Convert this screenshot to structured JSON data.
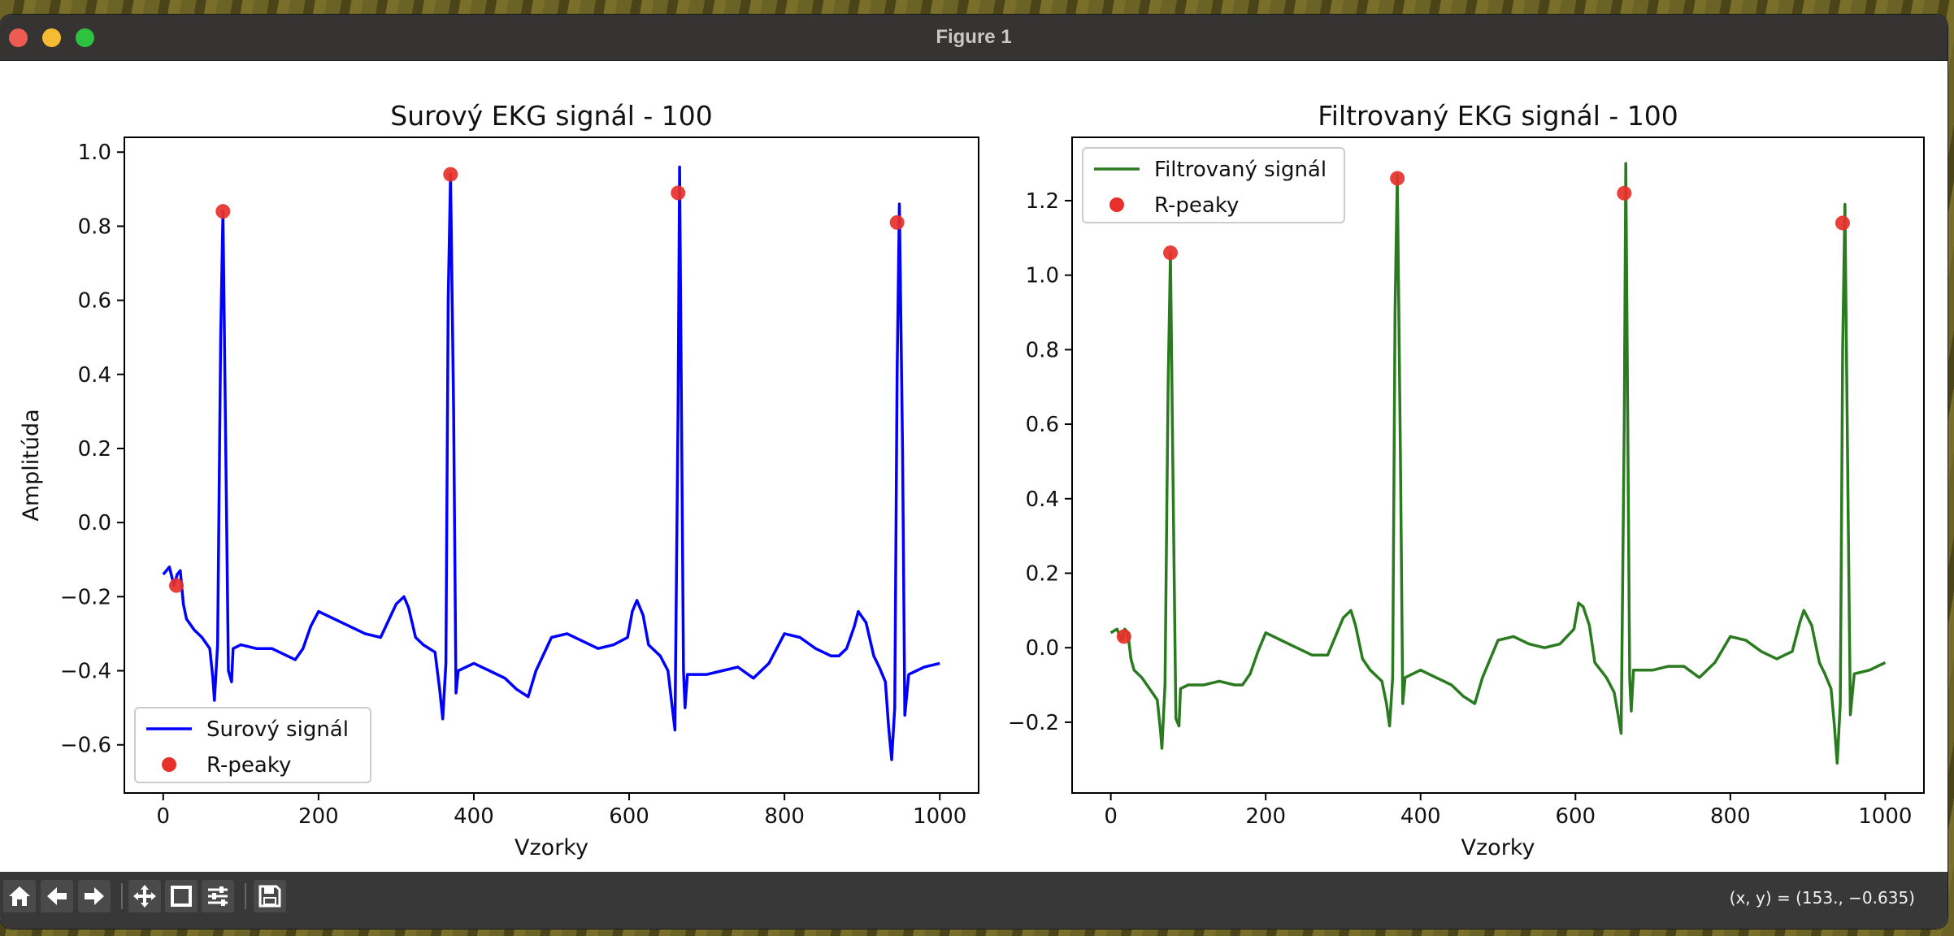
{
  "window": {
    "title": "Figure 1",
    "traffic_lights": {
      "close": "#ee5b52",
      "minimize": "#f4bb33",
      "maximize": "#2dc240"
    }
  },
  "toolbar": {
    "icons": [
      "home-icon",
      "back-arrow-icon",
      "forward-arrow-icon",
      "pan-icon",
      "zoom-icon",
      "configure-subplots-icon",
      "save-icon"
    ],
    "coordinates": "(x, y) = (153., −0.635)"
  },
  "chart_data": [
    {
      "type": "line",
      "title": "Surový EKG signál - 100",
      "xlabel": "Vzorky",
      "ylabel": "Amplitúda",
      "xlim": [
        -50,
        1050
      ],
      "ylim": [
        -0.73,
        1.04
      ],
      "xticks": [
        0,
        200,
        400,
        600,
        800,
        1000
      ],
      "yticks": [
        -0.6,
        -0.4,
        -0.2,
        0.0,
        0.2,
        0.4,
        0.6,
        0.8,
        1.0
      ],
      "ytick_labels": [
        "−0.6",
        "−0.4",
        "−0.2",
        "0.0",
        "0.2",
        "0.4",
        "0.6",
        "0.8",
        "1.0"
      ],
      "legend": {
        "placement": "lower left",
        "entries": [
          "Surový signál",
          "R-peaky"
        ]
      },
      "series": [
        {
          "name": "Surový signál",
          "color": "#0000ff",
          "x": [
            0,
            8,
            14,
            18,
            22,
            26,
            30,
            40,
            50,
            60,
            64,
            66,
            70,
            74,
            77,
            80,
            84,
            88,
            90,
            100,
            120,
            140,
            160,
            170,
            180,
            190,
            200,
            220,
            240,
            260,
            280,
            300,
            310,
            316,
            325,
            335,
            350,
            356,
            360,
            364,
            367,
            370,
            374,
            377,
            380,
            400,
            420,
            440,
            455,
            470,
            480,
            500,
            520,
            540,
            560,
            580,
            598,
            604,
            610,
            618,
            625,
            640,
            650,
            655,
            659,
            663,
            665,
            670,
            672,
            675,
            700,
            720,
            740,
            760,
            780,
            800,
            820,
            840,
            860,
            870,
            880,
            890,
            895,
            905,
            915,
            922,
            930,
            934,
            938,
            942,
            945,
            948,
            952,
            955,
            960,
            980,
            1000
          ],
          "y": [
            -0.14,
            -0.12,
            -0.17,
            -0.14,
            -0.13,
            -0.22,
            -0.26,
            -0.29,
            -0.31,
            -0.34,
            -0.42,
            -0.48,
            -0.33,
            0.5,
            0.84,
            0.3,
            -0.4,
            -0.43,
            -0.34,
            -0.33,
            -0.34,
            -0.34,
            -0.36,
            -0.37,
            -0.34,
            -0.28,
            -0.24,
            -0.26,
            -0.28,
            -0.3,
            -0.31,
            -0.22,
            -0.2,
            -0.23,
            -0.31,
            -0.33,
            -0.35,
            -0.45,
            -0.53,
            -0.38,
            0.6,
            0.94,
            0.3,
            -0.46,
            -0.4,
            -0.38,
            -0.4,
            -0.42,
            -0.45,
            -0.47,
            -0.4,
            -0.31,
            -0.3,
            -0.32,
            -0.34,
            -0.33,
            -0.31,
            -0.24,
            -0.21,
            -0.25,
            -0.33,
            -0.36,
            -0.4,
            -0.49,
            -0.56,
            0.3,
            0.96,
            -0.4,
            -0.5,
            -0.41,
            -0.41,
            -0.4,
            -0.39,
            -0.42,
            -0.38,
            -0.3,
            -0.31,
            -0.34,
            -0.36,
            -0.36,
            -0.34,
            -0.28,
            -0.24,
            -0.27,
            -0.36,
            -0.39,
            -0.43,
            -0.55,
            -0.64,
            -0.5,
            0.4,
            0.86,
            0.2,
            -0.52,
            -0.41,
            -0.39,
            -0.38
          ]
        },
        {
          "name": "R-peaky",
          "type": "scatter",
          "color": "#e8302a",
          "x": [
            17,
            77,
            370,
            663,
            945
          ],
          "y": [
            -0.17,
            0.84,
            0.94,
            0.89,
            0.81
          ]
        }
      ]
    },
    {
      "type": "line",
      "title": "Filtrovaný EKG signál - 100",
      "xlabel": "Vzorky",
      "ylabel": "",
      "xlim": [
        -50,
        1050
      ],
      "ylim": [
        -0.39,
        1.37
      ],
      "xticks": [
        0,
        200,
        400,
        600,
        800,
        1000
      ],
      "yticks": [
        -0.2,
        0.0,
        0.2,
        0.4,
        0.6,
        0.8,
        1.0,
        1.2
      ],
      "ytick_labels": [
        "−0.2",
        "0.0",
        "0.2",
        "0.4",
        "0.6",
        "0.8",
        "1.0",
        "1.2"
      ],
      "legend": {
        "placement": "upper left",
        "entries": [
          "Filtrovaný signál",
          "R-peaky"
        ]
      },
      "series": [
        {
          "name": "Filtrovaný signál",
          "color": "#2a7a1f",
          "x": [
            0,
            8,
            14,
            18,
            22,
            26,
            30,
            40,
            50,
            60,
            64,
            66,
            70,
            74,
            77,
            80,
            84,
            88,
            90,
            100,
            120,
            140,
            160,
            170,
            180,
            190,
            200,
            220,
            240,
            260,
            280,
            300,
            310,
            316,
            325,
            335,
            350,
            356,
            360,
            364,
            367,
            370,
            374,
            377,
            380,
            400,
            420,
            440,
            455,
            470,
            480,
            500,
            520,
            540,
            560,
            580,
            598,
            604,
            610,
            618,
            625,
            640,
            650,
            655,
            659,
            663,
            665,
            670,
            672,
            675,
            700,
            720,
            740,
            760,
            780,
            800,
            820,
            840,
            860,
            870,
            880,
            890,
            895,
            905,
            915,
            922,
            930,
            934,
            938,
            942,
            945,
            948,
            952,
            955,
            960,
            980,
            1000
          ],
          "y": [
            0.04,
            0.05,
            0.02,
            0.05,
            0.04,
            -0.03,
            -0.06,
            -0.08,
            -0.11,
            -0.14,
            -0.22,
            -0.27,
            -0.1,
            0.7,
            1.06,
            0.5,
            -0.19,
            -0.21,
            -0.11,
            -0.1,
            -0.1,
            -0.09,
            -0.1,
            -0.1,
            -0.07,
            -0.01,
            0.04,
            0.02,
            0.0,
            -0.02,
            -0.02,
            0.08,
            0.1,
            0.06,
            -0.03,
            -0.06,
            -0.09,
            -0.15,
            -0.21,
            -0.08,
            0.9,
            1.27,
            0.5,
            -0.15,
            -0.08,
            -0.06,
            -0.08,
            -0.1,
            -0.13,
            -0.15,
            -0.08,
            0.02,
            0.03,
            0.01,
            0.0,
            0.01,
            0.05,
            0.12,
            0.11,
            0.06,
            -0.04,
            -0.08,
            -0.12,
            -0.18,
            -0.23,
            0.6,
            1.3,
            -0.08,
            -0.17,
            -0.06,
            -0.06,
            -0.05,
            -0.05,
            -0.08,
            -0.04,
            0.03,
            0.02,
            -0.01,
            -0.03,
            -0.02,
            -0.01,
            0.07,
            0.1,
            0.06,
            -0.04,
            -0.07,
            -0.11,
            -0.2,
            -0.31,
            -0.15,
            0.8,
            1.19,
            0.4,
            -0.18,
            -0.07,
            -0.06,
            -0.04
          ]
        },
        {
          "name": "R-peaky",
          "type": "scatter",
          "color": "#e8302a",
          "x": [
            17,
            77,
            370,
            663,
            945
          ],
          "y": [
            0.03,
            1.06,
            1.26,
            1.22,
            1.14
          ]
        }
      ]
    }
  ]
}
